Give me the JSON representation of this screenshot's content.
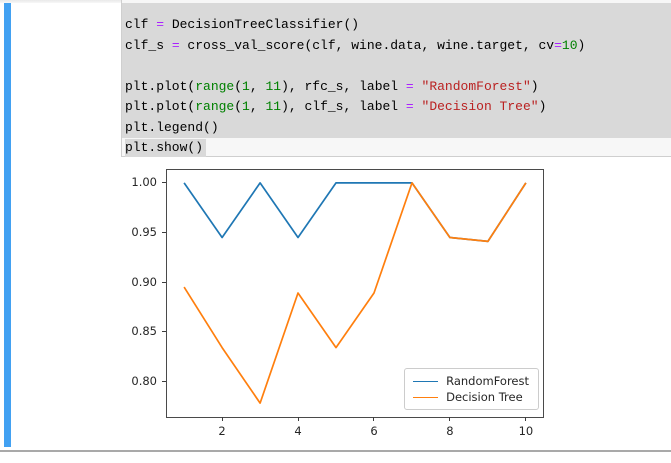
{
  "chrome": {
    "accent_bar_color": "#42a1f2",
    "bottom_line_color": "#a9a9a9"
  },
  "syntax_colors": {
    "pl": "#000000",
    "op": "#AA22FF",
    "bi": "#008000",
    "num": "#008000",
    "str": "#BA2121"
  },
  "code_cell": {
    "background": "#f7f7f7",
    "selection_color": "#d9d9d9",
    "lines": [
      {
        "selected": "full",
        "tokens": [
          [
            "clf ",
            "pl"
          ],
          [
            "=",
            "op"
          ],
          [
            " DecisionTreeClassifier()",
            "pl"
          ]
        ]
      },
      {
        "selected": "full",
        "tokens": [
          [
            "clf_s ",
            "pl"
          ],
          [
            "=",
            "op"
          ],
          [
            " cross_val_score(clf, wine.data, wine.target, cv",
            "pl"
          ],
          [
            "=",
            "op"
          ],
          [
            "10",
            "num"
          ],
          [
            ")",
            "pl"
          ]
        ]
      },
      {
        "selected": "full",
        "tokens": []
      },
      {
        "selected": "full",
        "tokens": [
          [
            "plt.plot(",
            "pl"
          ],
          [
            "range",
            "bi"
          ],
          [
            "(",
            "pl"
          ],
          [
            "1",
            "num"
          ],
          [
            ", ",
            "pl"
          ],
          [
            "11",
            "num"
          ],
          [
            "), rfc_s, label ",
            "pl"
          ],
          [
            "=",
            "op"
          ],
          [
            " ",
            "pl"
          ],
          [
            "\"RandomForest\"",
            "str"
          ],
          [
            ")",
            "pl"
          ]
        ]
      },
      {
        "selected": "full",
        "tokens": [
          [
            "plt.plot(",
            "pl"
          ],
          [
            "range",
            "bi"
          ],
          [
            "(",
            "pl"
          ],
          [
            "1",
            "num"
          ],
          [
            ", ",
            "pl"
          ],
          [
            "11",
            "num"
          ],
          [
            "), clf_s, label ",
            "pl"
          ],
          [
            "=",
            "op"
          ],
          [
            " ",
            "pl"
          ],
          [
            "\"Decision Tree\"",
            "str"
          ],
          [
            ")",
            "pl"
          ]
        ]
      },
      {
        "selected": "full",
        "tokens": [
          [
            "plt.legend()",
            "pl"
          ]
        ]
      },
      {
        "selected": "text",
        "tokens": [
          [
            "plt.show()",
            "pl"
          ]
        ]
      }
    ]
  },
  "chart_data": {
    "type": "line",
    "title": "",
    "xlabel": "",
    "ylabel": "",
    "grid": false,
    "x": [
      1,
      2,
      3,
      4,
      5,
      6,
      7,
      8,
      9,
      10
    ],
    "series": [
      {
        "name": "RandomForest",
        "color": "#1f77b4",
        "values": [
          1.0,
          0.945,
          1.0,
          0.945,
          1.0,
          1.0,
          1.0,
          0.945,
          0.941,
          1.0
        ]
      },
      {
        "name": "Decision Tree",
        "color": "#ff7f0e",
        "values": [
          0.895,
          0.834,
          0.778,
          0.889,
          0.834,
          0.889,
          1.0,
          0.945,
          0.941,
          1.0
        ]
      }
    ],
    "xlim": [
      0.55,
      10.45
    ],
    "ylim": [
      0.764,
      1.013
    ],
    "xticks": [
      {
        "v": 2,
        "label": "2"
      },
      {
        "v": 4,
        "label": "4"
      },
      {
        "v": 6,
        "label": "6"
      },
      {
        "v": 8,
        "label": "8"
      },
      {
        "v": 10,
        "label": "10"
      }
    ],
    "yticks": [
      {
        "v": 0.8,
        "label": "0.80"
      },
      {
        "v": 0.85,
        "label": "0.85"
      },
      {
        "v": 0.9,
        "label": "0.90"
      },
      {
        "v": 0.95,
        "label": "0.95"
      },
      {
        "v": 1.0,
        "label": "1.00"
      }
    ],
    "legend": {
      "position": "lower right"
    }
  }
}
